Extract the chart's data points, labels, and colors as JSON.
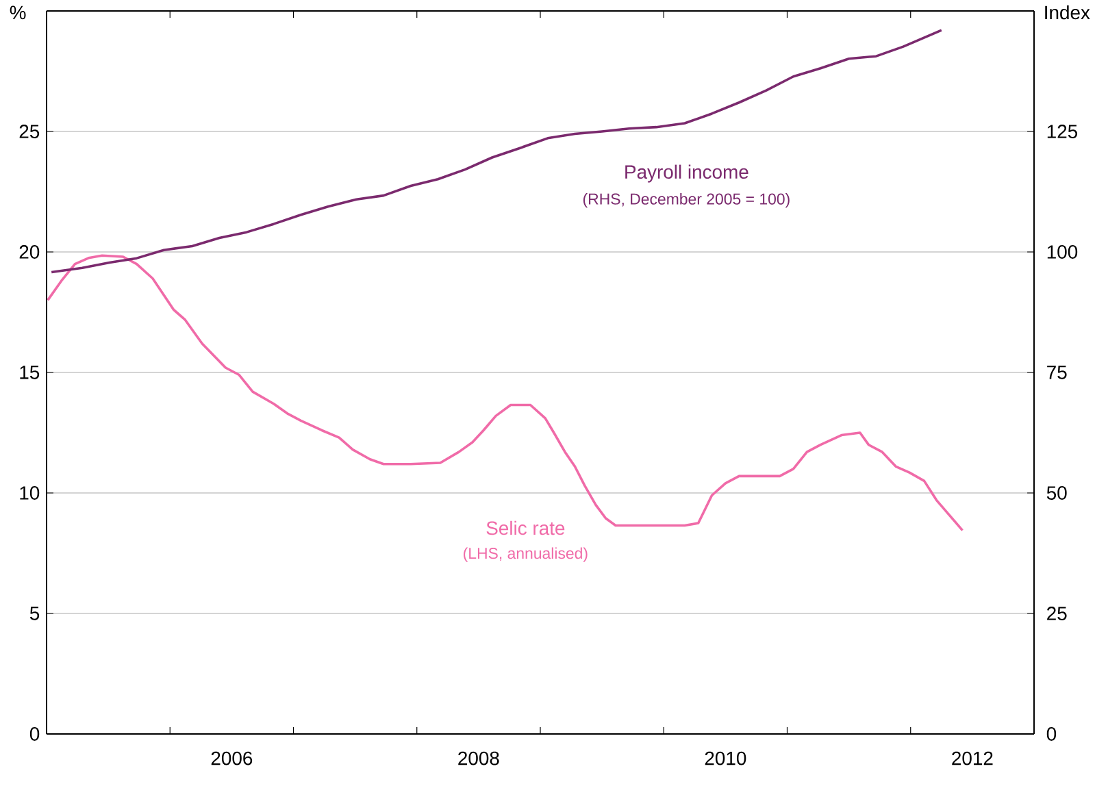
{
  "chart_data": {
    "type": "line",
    "ylabel": "%",
    "y2label": "Index",
    "xlim": [
      2005,
      2013
    ],
    "xticks": [
      {
        "value": 2006,
        "label": null
      },
      {
        "value": 2007,
        "label": null
      },
      {
        "value": 2008,
        "label": null
      },
      {
        "value": 2009,
        "label": null
      },
      {
        "value": 2010,
        "label": null
      },
      {
        "value": 2011,
        "label": null
      },
      {
        "value": 2012,
        "label": null
      },
      {
        "value": 2006.5,
        "label": "2006"
      },
      {
        "value": 2008.5,
        "label": "2008"
      },
      {
        "value": 2010.5,
        "label": "2010"
      },
      {
        "value": 2012.5,
        "label": "2012"
      }
    ],
    "ylim": [
      0,
      30
    ],
    "yticks": [
      0,
      5,
      10,
      15,
      20,
      25
    ],
    "y2lim": [
      0,
      150
    ],
    "y2ticks": [
      0,
      25,
      50,
      75,
      100,
      125
    ],
    "grid": "y",
    "marker": "none",
    "line_style": "solid",
    "series": [
      {
        "name": "Payroll income",
        "color": "#7b2a6e",
        "axis": "y2",
        "x": [
          2005.04,
          2005.29,
          2005.51,
          2005.73,
          2005.95,
          2006.18,
          2006.4,
          2006.62,
          2006.84,
          2007.06,
          2007.28,
          2007.51,
          2007.73,
          2007.95,
          2008.17,
          2008.39,
          2008.61,
          2008.84,
          2009.06,
          2009.28,
          2009.5,
          2009.72,
          2009.94,
          2010.17,
          2010.39,
          2010.61,
          2010.83,
          2011.05,
          2011.27,
          2011.5,
          2011.72,
          2011.94,
          2012.25
        ],
        "values": [
          95.8,
          96.7,
          97.8,
          98.7,
          100.4,
          101.2,
          102.9,
          104.1,
          105.8,
          107.7,
          109.4,
          110.9,
          111.7,
          113.7,
          115.1,
          117.1,
          119.6,
          121.6,
          123.6,
          124.5,
          125.0,
          125.6,
          125.9,
          126.7,
          128.7,
          131.0,
          133.5,
          136.4,
          138.1,
          140.1,
          140.6,
          142.6,
          146.0
        ]
      },
      {
        "name": "Selic rate",
        "color": "#f06ba8",
        "axis": "y",
        "x": [
          2005.01,
          2005.12,
          2005.23,
          2005.34,
          2005.45,
          2005.62,
          2005.73,
          2005.86,
          2006.03,
          2006.12,
          2006.26,
          2006.45,
          2006.56,
          2006.67,
          2006.84,
          2006.95,
          2007.06,
          2007.23,
          2007.37,
          2007.48,
          2007.62,
          2007.73,
          2007.95,
          2008.19,
          2008.34,
          2008.45,
          2008.54,
          2008.64,
          2008.76,
          2008.92,
          2009.04,
          2009.11,
          2009.2,
          2009.28,
          2009.36,
          2009.45,
          2009.53,
          2009.61,
          2010.17,
          2010.28,
          2010.39,
          2010.5,
          2010.61,
          2010.94,
          2011.05,
          2011.16,
          2011.27,
          2011.44,
          2011.59,
          2011.66,
          2011.77,
          2011.88,
          2011.99,
          2012.11,
          2012.21,
          2012.42
        ],
        "values": [
          18.0,
          18.8,
          19.5,
          19.75,
          19.85,
          19.8,
          19.5,
          18.9,
          17.6,
          17.2,
          16.2,
          15.2,
          14.9,
          14.2,
          13.7,
          13.3,
          13.0,
          12.6,
          12.3,
          11.8,
          11.4,
          11.2,
          11.2,
          11.25,
          11.7,
          12.1,
          12.6,
          13.2,
          13.65,
          13.65,
          13.1,
          12.5,
          11.7,
          11.1,
          10.3,
          9.5,
          8.95,
          8.65,
          8.65,
          8.75,
          9.9,
          10.4,
          10.7,
          10.7,
          11.0,
          11.7,
          12.0,
          12.4,
          12.5,
          12.0,
          11.7,
          11.1,
          10.85,
          10.5,
          9.7,
          8.45
        ]
      }
    ],
    "annotations": [
      "(RHS, December 2005 = 100)",
      "(LHS, annualised)"
    ]
  }
}
